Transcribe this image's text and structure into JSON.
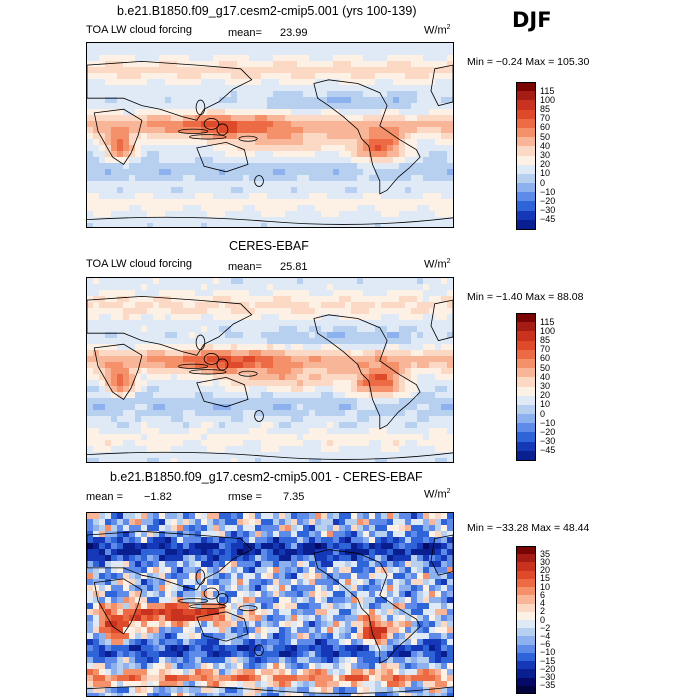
{
  "season": "DJF",
  "unit_main": "W/m",
  "unit_sup": "2",
  "panels": [
    {
      "title": "b.e21.B1850.f09_g17.cesm2-cmip5.001 (yrs 100-139)",
      "subtitle": "TOA LW cloud forcing",
      "mean_label": "mean=",
      "mean_value": "23.99",
      "minmax": "Min =  −0.24 Max = 105.30",
      "kind": "abs"
    },
    {
      "title": "CERES-EBAF",
      "subtitle": "TOA LW cloud forcing",
      "mean_label": "mean=",
      "mean_value": "25.81",
      "minmax": "Min =  −1.40 Max =  88.08",
      "kind": "abs2"
    },
    {
      "title": "b.e21.B1850.f09_g17.cesm2-cmip5.001 - CERES-EBAF",
      "mean_label": "mean =",
      "mean_value": "−1.82",
      "rmse_label": "rmse =",
      "rmse_value": "7.35",
      "minmax": "Min = −33.28 Max =  48.44",
      "kind": "diff"
    }
  ],
  "colorbar_abs": {
    "labels": [
      "115",
      "100",
      "85",
      "70",
      "60",
      "50",
      "40",
      "30",
      "20",
      "10",
      "0",
      "−10",
      "−20",
      "−30",
      "−45"
    ],
    "colors": [
      "#7a0403",
      "#a51c14",
      "#c8321f",
      "#de4a2a",
      "#ec6a44",
      "#f4906a",
      "#f9b597",
      "#fbd9c4",
      "#fdf0e4",
      "#dfeaf6",
      "#b7d0f0",
      "#8db1ee",
      "#5e8bea",
      "#2f63d8",
      "#1438b8",
      "#0a1f8f"
    ]
  },
  "colorbar_diff": {
    "labels": [
      "35",
      "30",
      "20",
      "15",
      "10",
      "6",
      "4",
      "2",
      "0",
      "−2",
      "−4",
      "−6",
      "−10",
      "−15",
      "−20",
      "−30",
      "−35"
    ],
    "colors": [
      "#7a0403",
      "#a51c14",
      "#c8321f",
      "#de4a2a",
      "#ec6a44",
      "#f4906a",
      "#f9b597",
      "#fbd9c4",
      "#fdf0e4",
      "#dfeaf6",
      "#b7d0f0",
      "#8db1ee",
      "#5e8bea",
      "#2f63d8",
      "#1438b8",
      "#0a1f8f",
      "#050a66",
      "#02043f"
    ]
  }
}
